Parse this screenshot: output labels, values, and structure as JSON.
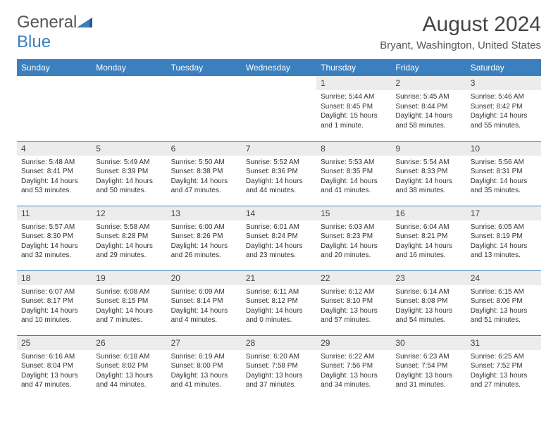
{
  "logo": {
    "text_part1": "General",
    "text_part2": "Blue",
    "color_gray": "#777777",
    "color_blue": "#3b7fbf"
  },
  "header": {
    "title": "August 2024",
    "location": "Bryant, Washington, United States"
  },
  "colors": {
    "header_bg": "#3b7fbf",
    "header_fg": "#ffffff",
    "daynum_bg": "#ececec",
    "border": "#3b7fbf",
    "text": "#333333",
    "background": "#ffffff"
  },
  "weekdays": [
    "Sunday",
    "Monday",
    "Tuesday",
    "Wednesday",
    "Thursday",
    "Friday",
    "Saturday"
  ],
  "weeks": [
    [
      {
        "day": "",
        "sunrise": "",
        "sunset": "",
        "daylight": ""
      },
      {
        "day": "",
        "sunrise": "",
        "sunset": "",
        "daylight": ""
      },
      {
        "day": "",
        "sunrise": "",
        "sunset": "",
        "daylight": ""
      },
      {
        "day": "",
        "sunrise": "",
        "sunset": "",
        "daylight": ""
      },
      {
        "day": "1",
        "sunrise": "Sunrise: 5:44 AM",
        "sunset": "Sunset: 8:45 PM",
        "daylight": "Daylight: 15 hours and 1 minute."
      },
      {
        "day": "2",
        "sunrise": "Sunrise: 5:45 AM",
        "sunset": "Sunset: 8:44 PM",
        "daylight": "Daylight: 14 hours and 58 minutes."
      },
      {
        "day": "3",
        "sunrise": "Sunrise: 5:46 AM",
        "sunset": "Sunset: 8:42 PM",
        "daylight": "Daylight: 14 hours and 55 minutes."
      }
    ],
    [
      {
        "day": "4",
        "sunrise": "Sunrise: 5:48 AM",
        "sunset": "Sunset: 8:41 PM",
        "daylight": "Daylight: 14 hours and 53 minutes."
      },
      {
        "day": "5",
        "sunrise": "Sunrise: 5:49 AM",
        "sunset": "Sunset: 8:39 PM",
        "daylight": "Daylight: 14 hours and 50 minutes."
      },
      {
        "day": "6",
        "sunrise": "Sunrise: 5:50 AM",
        "sunset": "Sunset: 8:38 PM",
        "daylight": "Daylight: 14 hours and 47 minutes."
      },
      {
        "day": "7",
        "sunrise": "Sunrise: 5:52 AM",
        "sunset": "Sunset: 8:36 PM",
        "daylight": "Daylight: 14 hours and 44 minutes."
      },
      {
        "day": "8",
        "sunrise": "Sunrise: 5:53 AM",
        "sunset": "Sunset: 8:35 PM",
        "daylight": "Daylight: 14 hours and 41 minutes."
      },
      {
        "day": "9",
        "sunrise": "Sunrise: 5:54 AM",
        "sunset": "Sunset: 8:33 PM",
        "daylight": "Daylight: 14 hours and 38 minutes."
      },
      {
        "day": "10",
        "sunrise": "Sunrise: 5:56 AM",
        "sunset": "Sunset: 8:31 PM",
        "daylight": "Daylight: 14 hours and 35 minutes."
      }
    ],
    [
      {
        "day": "11",
        "sunrise": "Sunrise: 5:57 AM",
        "sunset": "Sunset: 8:30 PM",
        "daylight": "Daylight: 14 hours and 32 minutes."
      },
      {
        "day": "12",
        "sunrise": "Sunrise: 5:58 AM",
        "sunset": "Sunset: 8:28 PM",
        "daylight": "Daylight: 14 hours and 29 minutes."
      },
      {
        "day": "13",
        "sunrise": "Sunrise: 6:00 AM",
        "sunset": "Sunset: 8:26 PM",
        "daylight": "Daylight: 14 hours and 26 minutes."
      },
      {
        "day": "14",
        "sunrise": "Sunrise: 6:01 AM",
        "sunset": "Sunset: 8:24 PM",
        "daylight": "Daylight: 14 hours and 23 minutes."
      },
      {
        "day": "15",
        "sunrise": "Sunrise: 6:03 AM",
        "sunset": "Sunset: 8:23 PM",
        "daylight": "Daylight: 14 hours and 20 minutes."
      },
      {
        "day": "16",
        "sunrise": "Sunrise: 6:04 AM",
        "sunset": "Sunset: 8:21 PM",
        "daylight": "Daylight: 14 hours and 16 minutes."
      },
      {
        "day": "17",
        "sunrise": "Sunrise: 6:05 AM",
        "sunset": "Sunset: 8:19 PM",
        "daylight": "Daylight: 14 hours and 13 minutes."
      }
    ],
    [
      {
        "day": "18",
        "sunrise": "Sunrise: 6:07 AM",
        "sunset": "Sunset: 8:17 PM",
        "daylight": "Daylight: 14 hours and 10 minutes."
      },
      {
        "day": "19",
        "sunrise": "Sunrise: 6:08 AM",
        "sunset": "Sunset: 8:15 PM",
        "daylight": "Daylight: 14 hours and 7 minutes."
      },
      {
        "day": "20",
        "sunrise": "Sunrise: 6:09 AM",
        "sunset": "Sunset: 8:14 PM",
        "daylight": "Daylight: 14 hours and 4 minutes."
      },
      {
        "day": "21",
        "sunrise": "Sunrise: 6:11 AM",
        "sunset": "Sunset: 8:12 PM",
        "daylight": "Daylight: 14 hours and 0 minutes."
      },
      {
        "day": "22",
        "sunrise": "Sunrise: 6:12 AM",
        "sunset": "Sunset: 8:10 PM",
        "daylight": "Daylight: 13 hours and 57 minutes."
      },
      {
        "day": "23",
        "sunrise": "Sunrise: 6:14 AM",
        "sunset": "Sunset: 8:08 PM",
        "daylight": "Daylight: 13 hours and 54 minutes."
      },
      {
        "day": "24",
        "sunrise": "Sunrise: 6:15 AM",
        "sunset": "Sunset: 8:06 PM",
        "daylight": "Daylight: 13 hours and 51 minutes."
      }
    ],
    [
      {
        "day": "25",
        "sunrise": "Sunrise: 6:16 AM",
        "sunset": "Sunset: 8:04 PM",
        "daylight": "Daylight: 13 hours and 47 minutes."
      },
      {
        "day": "26",
        "sunrise": "Sunrise: 6:18 AM",
        "sunset": "Sunset: 8:02 PM",
        "daylight": "Daylight: 13 hours and 44 minutes."
      },
      {
        "day": "27",
        "sunrise": "Sunrise: 6:19 AM",
        "sunset": "Sunset: 8:00 PM",
        "daylight": "Daylight: 13 hours and 41 minutes."
      },
      {
        "day": "28",
        "sunrise": "Sunrise: 6:20 AM",
        "sunset": "Sunset: 7:58 PM",
        "daylight": "Daylight: 13 hours and 37 minutes."
      },
      {
        "day": "29",
        "sunrise": "Sunrise: 6:22 AM",
        "sunset": "Sunset: 7:56 PM",
        "daylight": "Daylight: 13 hours and 34 minutes."
      },
      {
        "day": "30",
        "sunrise": "Sunrise: 6:23 AM",
        "sunset": "Sunset: 7:54 PM",
        "daylight": "Daylight: 13 hours and 31 minutes."
      },
      {
        "day": "31",
        "sunrise": "Sunrise: 6:25 AM",
        "sunset": "Sunset: 7:52 PM",
        "daylight": "Daylight: 13 hours and 27 minutes."
      }
    ]
  ]
}
